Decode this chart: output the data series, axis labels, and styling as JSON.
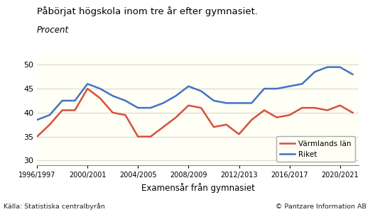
{
  "title_line1": "Påbörjat högskola inom tre år efter gymnasiet.",
  "title_line2": "Procent",
  "xlabel": "Examensår från gymnasiet",
  "background_color": "#fffff5",
  "outer_background": "#ffffff",
  "x_labels": [
    "1996/1997",
    "2000/2001",
    "2004/2005",
    "2008/2009",
    "2012/2013",
    "2016/2017",
    "2020/2021"
  ],
  "x_tick_positions": [
    1996,
    2000,
    2004,
    2008,
    2012,
    2016,
    2020
  ],
  "x_values": [
    1996,
    1997,
    1998,
    1999,
    2000,
    2001,
    2002,
    2003,
    2004,
    2005,
    2006,
    2007,
    2008,
    2009,
    2010,
    2011,
    2012,
    2013,
    2014,
    2015,
    2016,
    2017,
    2018,
    2019,
    2020,
    2021
  ],
  "varmland": [
    35.0,
    37.5,
    40.5,
    40.5,
    45.0,
    43.0,
    40.0,
    39.5,
    35.0,
    35.0,
    37.0,
    39.0,
    41.5,
    41.0,
    37.0,
    37.5,
    35.5,
    38.5,
    40.5,
    39.0,
    39.5,
    41.0,
    41.0,
    40.5,
    41.5,
    40.0
  ],
  "riket": [
    38.5,
    39.5,
    42.5,
    42.5,
    46.0,
    45.0,
    43.5,
    42.5,
    41.0,
    41.0,
    42.0,
    43.5,
    45.5,
    44.5,
    42.5,
    42.0,
    42.0,
    42.0,
    45.0,
    45.0,
    45.5,
    46.0,
    48.5,
    49.5,
    49.5,
    48.0
  ],
  "varmland_color": "#d94f3d",
  "riket_color": "#4472c4",
  "ylim": [
    29,
    52
  ],
  "yticks": [
    30,
    35,
    40,
    45,
    50
  ],
  "xlim": [
    1996,
    2021.5
  ],
  "source_left": "Källa: Statistiska centralbyrån",
  "source_right": "© Pantzare Information AB",
  "legend_labels": [
    "Värmlands län",
    "Riket"
  ],
  "line_width": 1.8
}
